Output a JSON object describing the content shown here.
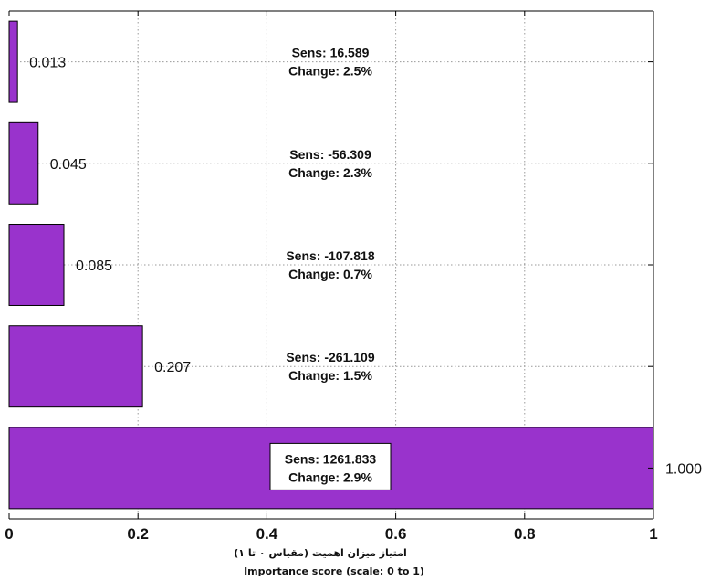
{
  "chart_data": {
    "type": "bar",
    "orientation": "horizontal",
    "xlabel_fa": "امتیاز میزان اهمیت (مقیاس ۰ تا ۱)",
    "xlabel": "Importance score (scale: 0 to 1)",
    "xlim": [
      0,
      1
    ],
    "xticks": [
      "0",
      "0.2",
      "0.4",
      "0.6",
      "0.8",
      "1"
    ],
    "grid": true,
    "bar_color": "#9933cc",
    "bars": [
      {
        "value": 0.013,
        "label": "0.013",
        "sens": "Sens: 16.589",
        "change": "Change: 2.5%"
      },
      {
        "value": 0.045,
        "label": "0.045",
        "sens": "Sens: -56.309",
        "change": "Change: 2.3%"
      },
      {
        "value": 0.085,
        "label": "0.085",
        "sens": "Sens: -107.818",
        "change": "Change: 0.7%"
      },
      {
        "value": 0.207,
        "label": "0.207",
        "sens": "Sens: -261.109",
        "change": "Change: 1.5%"
      },
      {
        "value": 1.0,
        "label": "1.000",
        "sens": "Sens: 1261.833",
        "change": "Change: 2.9%"
      }
    ]
  }
}
